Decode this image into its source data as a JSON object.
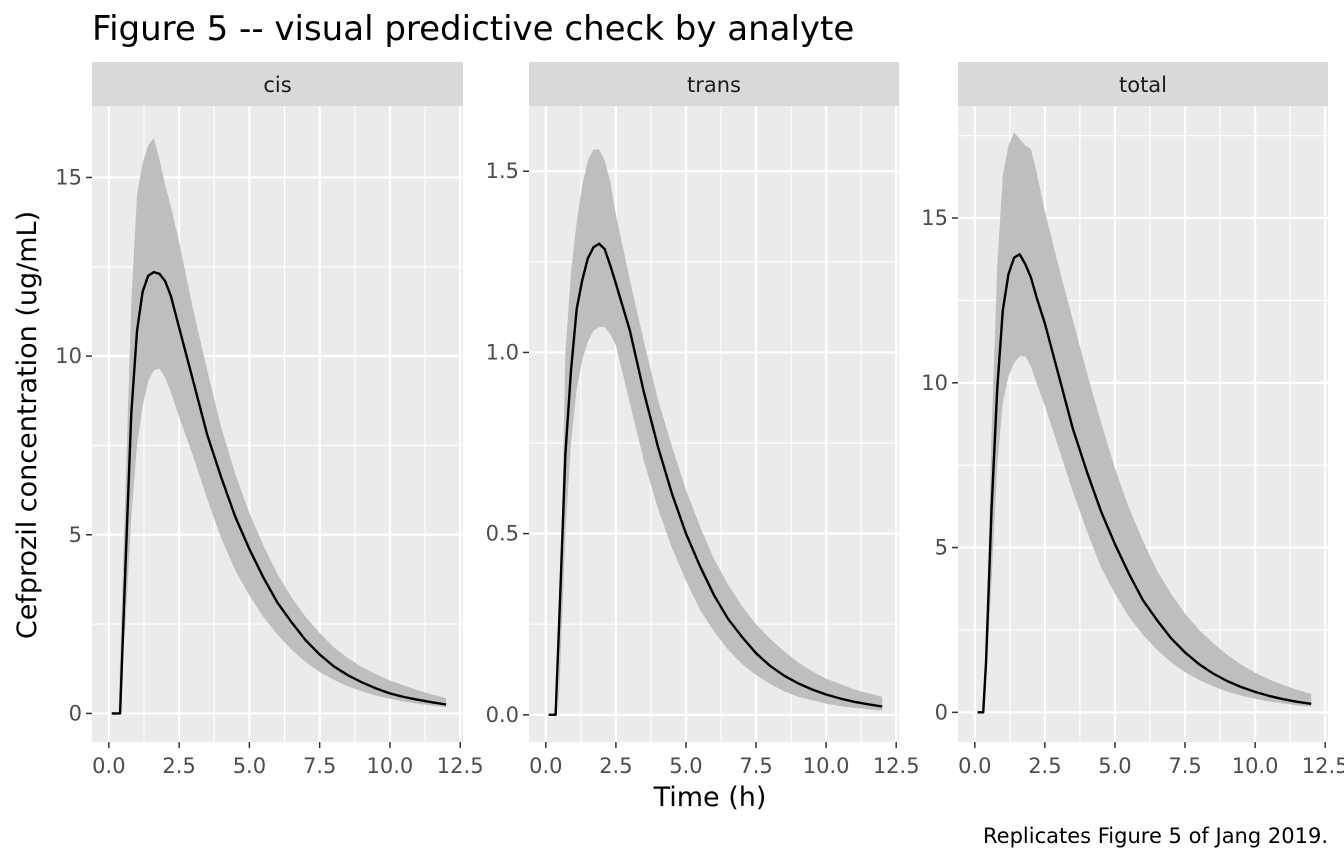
{
  "chart_data": {
    "type": "line",
    "title": "Figure 5 -- visual predictive check by analyte",
    "xlabel": "Time (h)",
    "ylabel": "Cefprozil concentration (ug/mL)",
    "caption": "Replicates Figure 5 of Jang 2019.",
    "x_ticks": [
      "0.0",
      "2.5",
      "5.0",
      "7.5",
      "10.0",
      "12.5"
    ],
    "xlim": [
      -0.6,
      12.6
    ],
    "grid": true,
    "colors": {
      "panel_bg": "#ebebeb",
      "strip_bg": "#d9d9d9",
      "band": "#bebebe",
      "line": "#000000",
      "grid": "#ffffff"
    },
    "panels": [
      {
        "label": "cis",
        "ylim": [
          -0.8,
          17.0
        ],
        "y_ticks": [
          "0",
          "5",
          "10",
          "15"
        ],
        "median": {
          "x": [
            0.1,
            0.2,
            0.4,
            0.6,
            0.8,
            1.0,
            1.2,
            1.4,
            1.6,
            1.8,
            2.0,
            2.2,
            2.5,
            3.0,
            3.5,
            4.0,
            4.5,
            5.0,
            5.5,
            6.0,
            6.5,
            7.0,
            7.5,
            8.0,
            8.5,
            9.0,
            9.5,
            10.0,
            10.5,
            11.0,
            11.5,
            12.0
          ],
          "y": [
            0.0,
            0.0,
            0.0,
            4.3,
            8.4,
            10.7,
            11.8,
            12.25,
            12.35,
            12.3,
            12.1,
            11.7,
            10.8,
            9.3,
            7.8,
            6.6,
            5.5,
            4.6,
            3.8,
            3.1,
            2.55,
            2.05,
            1.65,
            1.32,
            1.07,
            0.87,
            0.7,
            0.56,
            0.46,
            0.38,
            0.31,
            0.25
          ]
        },
        "band": {
          "x": [
            0.35,
            0.6,
            0.8,
            1.0,
            1.2,
            1.4,
            1.6,
            1.8,
            2.0,
            2.2,
            2.5,
            3.0,
            3.5,
            4.0,
            4.5,
            5.0,
            5.5,
            6.0,
            6.5,
            7.0,
            7.5,
            8.0,
            8.5,
            9.0,
            9.5,
            10.0,
            10.5,
            11.0,
            11.5,
            12.0
          ],
          "lower": [
            0.0,
            2.6,
            5.5,
            7.5,
            8.6,
            9.3,
            9.6,
            9.65,
            9.4,
            9.0,
            8.3,
            7.2,
            6.0,
            4.9,
            4.0,
            3.3,
            2.7,
            2.2,
            1.78,
            1.44,
            1.16,
            0.94,
            0.76,
            0.62,
            0.5,
            0.41,
            0.33,
            0.27,
            0.22,
            0.18
          ],
          "upper": [
            0.2,
            6.5,
            11.5,
            14.5,
            15.4,
            15.9,
            16.1,
            15.5,
            14.8,
            14.2,
            13.2,
            11.3,
            9.6,
            8.0,
            6.7,
            5.6,
            4.7,
            3.9,
            3.25,
            2.7,
            2.25,
            1.85,
            1.55,
            1.3,
            1.1,
            0.92,
            0.78,
            0.65,
            0.53,
            0.43
          ]
        }
      },
      {
        "label": "trans",
        "ylim": [
          -0.075,
          1.68
        ],
        "y_ticks": [
          "0.0",
          "0.5",
          "1.0",
          "1.5"
        ],
        "median": {
          "x": [
            0.1,
            0.2,
            0.35,
            0.5,
            0.7,
            0.9,
            1.1,
            1.3,
            1.5,
            1.7,
            1.9,
            2.1,
            2.3,
            2.5,
            3.0,
            3.5,
            4.0,
            4.5,
            5.0,
            5.5,
            6.0,
            6.5,
            7.0,
            7.5,
            8.0,
            8.5,
            9.0,
            9.5,
            10.0,
            10.5,
            11.0,
            11.5,
            12.0
          ],
          "y": [
            0.0,
            0.0,
            0.0,
            0.3,
            0.72,
            0.95,
            1.12,
            1.2,
            1.26,
            1.29,
            1.3,
            1.285,
            1.24,
            1.19,
            1.06,
            0.89,
            0.74,
            0.61,
            0.5,
            0.41,
            0.33,
            0.265,
            0.215,
            0.17,
            0.135,
            0.108,
            0.087,
            0.07,
            0.056,
            0.045,
            0.036,
            0.029,
            0.023
          ]
        },
        "band": {
          "x": [
            0.45,
            0.7,
            0.9,
            1.1,
            1.3,
            1.5,
            1.7,
            1.9,
            2.1,
            2.3,
            2.5,
            3.0,
            3.5,
            4.0,
            4.5,
            5.0,
            5.5,
            6.0,
            6.5,
            7.0,
            7.5,
            8.0,
            8.5,
            9.0,
            9.5,
            10.0,
            10.5,
            11.0,
            11.5,
            12.0
          ],
          "lower": [
            0.0,
            0.5,
            0.75,
            0.9,
            0.98,
            1.03,
            1.06,
            1.07,
            1.07,
            1.05,
            1.02,
            0.86,
            0.7,
            0.57,
            0.46,
            0.37,
            0.29,
            0.23,
            0.18,
            0.14,
            0.11,
            0.085,
            0.065,
            0.05,
            0.04,
            0.031,
            0.024,
            0.019,
            0.015,
            0.012
          ],
          "upper": [
            0.05,
            1.0,
            1.22,
            1.36,
            1.46,
            1.53,
            1.56,
            1.56,
            1.53,
            1.47,
            1.38,
            1.2,
            1.03,
            0.87,
            0.74,
            0.62,
            0.52,
            0.43,
            0.36,
            0.3,
            0.25,
            0.21,
            0.175,
            0.145,
            0.12,
            0.1,
            0.085,
            0.07,
            0.06,
            0.05
          ]
        }
      },
      {
        "label": "total",
        "ylim": [
          -0.9,
          18.4
        ],
        "y_ticks": [
          "0",
          "5",
          "10",
          "15"
        ],
        "median": {
          "x": [
            0.1,
            0.2,
            0.3,
            0.4,
            0.6,
            0.8,
            1.0,
            1.2,
            1.4,
            1.6,
            1.8,
            2.0,
            2.2,
            2.5,
            3.0,
            3.5,
            4.0,
            4.5,
            5.0,
            5.5,
            6.0,
            6.5,
            7.0,
            7.5,
            8.0,
            8.5,
            9.0,
            9.5,
            10.0,
            10.5,
            11.0,
            11.5,
            12.0
          ],
          "y": [
            0.0,
            0.0,
            0.0,
            1.5,
            6.2,
            9.8,
            12.2,
            13.3,
            13.8,
            13.9,
            13.6,
            13.2,
            12.6,
            11.8,
            10.2,
            8.6,
            7.3,
            6.1,
            5.1,
            4.2,
            3.4,
            2.8,
            2.25,
            1.82,
            1.46,
            1.18,
            0.95,
            0.77,
            0.62,
            0.5,
            0.4,
            0.32,
            0.26
          ]
        },
        "band": {
          "x": [
            0.35,
            0.6,
            0.8,
            1.0,
            1.2,
            1.4,
            1.6,
            1.8,
            2.0,
            2.2,
            2.5,
            3.0,
            3.5,
            4.0,
            4.5,
            5.0,
            5.5,
            6.0,
            6.5,
            7.0,
            7.5,
            8.0,
            8.5,
            9.0,
            9.5,
            10.0,
            10.5,
            11.0,
            11.5,
            12.0
          ],
          "lower": [
            0.0,
            4.0,
            7.5,
            9.4,
            10.2,
            10.6,
            10.8,
            10.8,
            10.5,
            10.0,
            9.3,
            8.0,
            6.7,
            5.5,
            4.4,
            3.6,
            2.9,
            2.35,
            1.9,
            1.52,
            1.22,
            0.98,
            0.79,
            0.63,
            0.51,
            0.41,
            0.33,
            0.27,
            0.21,
            0.17
          ],
          "upper": [
            0.3,
            8.5,
            13.5,
            16.3,
            17.2,
            17.6,
            17.4,
            17.2,
            17.1,
            16.4,
            15.2,
            13.5,
            11.9,
            10.3,
            8.8,
            7.4,
            6.2,
            5.2,
            4.3,
            3.6,
            3.0,
            2.5,
            2.1,
            1.75,
            1.45,
            1.2,
            1.0,
            0.83,
            0.68,
            0.56
          ]
        }
      }
    ]
  }
}
